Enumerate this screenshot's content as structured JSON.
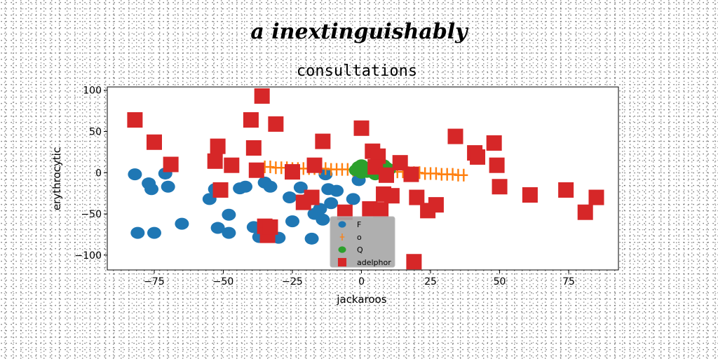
{
  "figure": {
    "suptitle": "a inextinguishably"
  },
  "chart_data": {
    "type": "scatter",
    "title": "consultations",
    "xlabel": "jackaroos",
    "ylabel": "erythrocytic",
    "xlim": [
      -92,
      93
    ],
    "ylim": [
      -118,
      104
    ],
    "xticks": [
      -75,
      -50,
      -25,
      0,
      25,
      50,
      75
    ],
    "xtick_labels": [
      "−75",
      "−50",
      "−25",
      "0",
      "25",
      "50",
      "75"
    ],
    "yticks": [
      -100,
      -50,
      0,
      50,
      100
    ],
    "ytick_labels": [
      "−100",
      "−50",
      "0",
      "50",
      "100"
    ],
    "grid": false,
    "legend_position": "bottom-center",
    "series": [
      {
        "name": "F",
        "marker": "circle",
        "color": "#1f77b4",
        "x": [
          -82,
          -77,
          -76,
          -70,
          -71,
          -81,
          -75,
          -65,
          -55,
          -53,
          -52,
          -48,
          -48,
          -44,
          -42,
          -39,
          -35,
          -33,
          -37,
          -30,
          -26,
          -25,
          -22,
          -20,
          -18,
          -17,
          -15,
          -14,
          -13,
          -12,
          -11,
          -9,
          -3,
          -1
        ],
        "y": [
          -2,
          -13,
          -20,
          -17,
          -1,
          -73,
          -73,
          -62,
          -32,
          -20,
          -67,
          -73,
          -51,
          -19,
          -17,
          -66,
          -12,
          -17,
          -78,
          -79,
          -30,
          -59,
          -18,
          -33,
          -80,
          -50,
          -44,
          -57,
          -2,
          -20,
          -37,
          -22,
          -32,
          -9
        ]
      },
      {
        "name": "o",
        "marker": "plus",
        "color": "#ff7f0e",
        "x": [
          -35,
          -33,
          -31,
          -29,
          -27,
          -25,
          -23,
          -21,
          -19,
          -17,
          -15,
          -13,
          -11,
          -9,
          -7,
          -5,
          -3,
          -1,
          1,
          3,
          5,
          7,
          9,
          11,
          13,
          15,
          17,
          19,
          21,
          23,
          25,
          27,
          29,
          31,
          33,
          35,
          37
        ],
        "y": [
          7,
          7,
          6,
          6,
          6,
          5,
          5,
          5,
          5,
          5,
          5,
          5,
          4,
          4,
          4,
          4,
          3,
          3,
          3,
          3,
          2,
          2,
          2,
          1,
          1,
          1,
          0,
          0,
          0,
          -1,
          -1,
          -1,
          -2,
          -2,
          -2,
          -3,
          -3
        ]
      },
      {
        "name": "Q",
        "marker": "circle",
        "color": "#2ca02c",
        "x": [
          -2,
          -1,
          0,
          1,
          2,
          3,
          4,
          5,
          6,
          7,
          8,
          9,
          10,
          0,
          2,
          5,
          8
        ],
        "y": [
          3,
          7,
          9,
          5,
          2,
          6,
          8,
          4,
          7,
          3,
          9,
          6,
          4,
          0,
          1,
          -2,
          1
        ]
      },
      {
        "name": "adelphor",
        "marker": "square",
        "color": "#d62728",
        "x": [
          -82,
          -75,
          -69,
          -53,
          -52,
          -51,
          -47,
          -40,
          -39,
          -38,
          -36,
          -35,
          -34,
          -31,
          -33,
          -25,
          -21,
          -18,
          -17,
          -14,
          -6,
          0,
          4,
          3,
          6,
          7,
          8,
          5,
          9,
          11,
          14,
          18,
          20,
          24,
          27,
          19,
          34,
          41,
          42,
          48,
          49,
          50,
          61,
          74,
          81,
          85
        ],
        "y": [
          64,
          37,
          10,
          14,
          32,
          -21,
          9,
          64,
          30,
          3,
          93,
          -65,
          -76,
          59,
          -66,
          1,
          -36,
          -30,
          9,
          38,
          -48,
          54,
          26,
          -44,
          20,
          -45,
          -26,
          7,
          -3,
          -28,
          12,
          -2,
          -30,
          -46,
          -39,
          -108,
          44,
          24,
          19,
          36,
          9,
          -17,
          -27,
          -21,
          -48,
          -30
        ]
      }
    ]
  }
}
